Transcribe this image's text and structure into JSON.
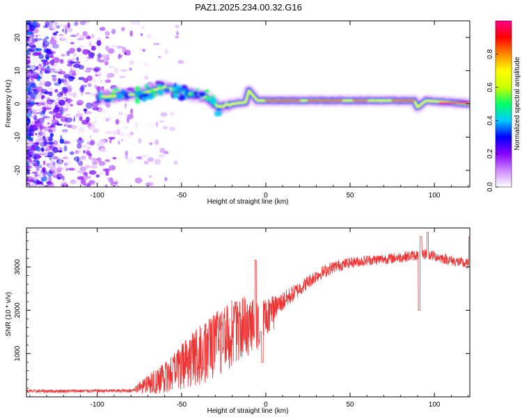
{
  "title": "PAZ1.2025.234.00.32.G16",
  "chart_data": [
    {
      "type": "heatmap",
      "name": "spectrogram",
      "xlabel": "Height of straight line (km)",
      "ylabel": "Frequency (Hz)",
      "xlim": [
        -142,
        121
      ],
      "ylim": [
        -25,
        25
      ],
      "xticks": [
        -100,
        -50,
        0,
        50,
        100
      ],
      "yticks": [
        -20,
        -10,
        0,
        10,
        20
      ],
      "colorbar": {
        "label": "Normalized spectral amplitude",
        "range": [
          0,
          1
        ],
        "ticks": [
          0.0,
          0.2,
          0.4,
          0.6,
          0.8
        ],
        "stops": [
          "#ffffff",
          "#cc88ff",
          "#8800ff",
          "#0000ff",
          "#00ccff",
          "#00ff66",
          "#ccff00",
          "#ffff00",
          "#ff8800",
          "#ff0000",
          "#ff0088"
        ]
      },
      "ridge": [
        {
          "x": -100,
          "f": 2
        },
        {
          "x": -75,
          "f": 3
        },
        {
          "x": -60,
          "f": 5
        },
        {
          "x": -45,
          "f": 3
        },
        {
          "x": -35,
          "f": 2
        },
        {
          "x": -28,
          "f": -1
        },
        {
          "x": -20,
          "f": 0
        },
        {
          "x": -12,
          "f": 0.5
        },
        {
          "x": -10,
          "f": 4
        },
        {
          "x": -5,
          "f": 1
        },
        {
          "x": 0,
          "f": 1
        },
        {
          "x": 50,
          "f": 1
        },
        {
          "x": 88,
          "f": 1
        },
        {
          "x": 90,
          "f": -1
        },
        {
          "x": 95,
          "f": 1
        },
        {
          "x": 121,
          "f": 0
        }
      ]
    },
    {
      "type": "line",
      "name": "snr",
      "xlabel": "Height of straight line (km)",
      "ylabel": "SNR (10 * v/v)",
      "xlim": [
        -142,
        121
      ],
      "ylim": [
        0,
        3900
      ],
      "xticks": [
        -100,
        -50,
        0,
        50,
        100
      ],
      "yticks": [
        1000,
        2000,
        3000
      ],
      "color": "#ee3333",
      "envelope": [
        {
          "x": -142,
          "y": 130
        },
        {
          "x": -80,
          "y": 140
        },
        {
          "x": -75,
          "y": 250
        },
        {
          "x": -65,
          "y": 420
        },
        {
          "x": -55,
          "y": 650
        },
        {
          "x": -45,
          "y": 950
        },
        {
          "x": -35,
          "y": 1200
        },
        {
          "x": -25,
          "y": 1500
        },
        {
          "x": -15,
          "y": 1750
        },
        {
          "x": -5,
          "y": 1750
        },
        {
          "x": 0,
          "y": 1900
        },
        {
          "x": 10,
          "y": 2200
        },
        {
          "x": 20,
          "y": 2500
        },
        {
          "x": 30,
          "y": 2800
        },
        {
          "x": 40,
          "y": 3000
        },
        {
          "x": 50,
          "y": 3100
        },
        {
          "x": 60,
          "y": 3150
        },
        {
          "x": 75,
          "y": 3200
        },
        {
          "x": 85,
          "y": 3250
        },
        {
          "x": 95,
          "y": 3300
        },
        {
          "x": 110,
          "y": 3150
        },
        {
          "x": 121,
          "y": 3050
        }
      ],
      "noise": [
        {
          "x": -142,
          "a": 80
        },
        {
          "x": -78,
          "a": 80
        },
        {
          "x": -70,
          "a": 300
        },
        {
          "x": -55,
          "a": 600
        },
        {
          "x": -40,
          "a": 900
        },
        {
          "x": -25,
          "a": 1100
        },
        {
          "x": -10,
          "a": 900
        },
        {
          "x": 0,
          "a": 600
        },
        {
          "x": 20,
          "a": 350
        },
        {
          "x": 50,
          "a": 250
        },
        {
          "x": 121,
          "a": 250
        }
      ],
      "spikes": [
        {
          "x": -6,
          "y": 3150
        },
        {
          "x": -3,
          "y": 1500
        },
        {
          "x": -2,
          "y": 800
        },
        {
          "x": 91,
          "y": 2000
        },
        {
          "x": 92,
          "y": 3700
        },
        {
          "x": 96,
          "y": 3800
        },
        {
          "x": 121,
          "y": 3700
        }
      ]
    }
  ]
}
